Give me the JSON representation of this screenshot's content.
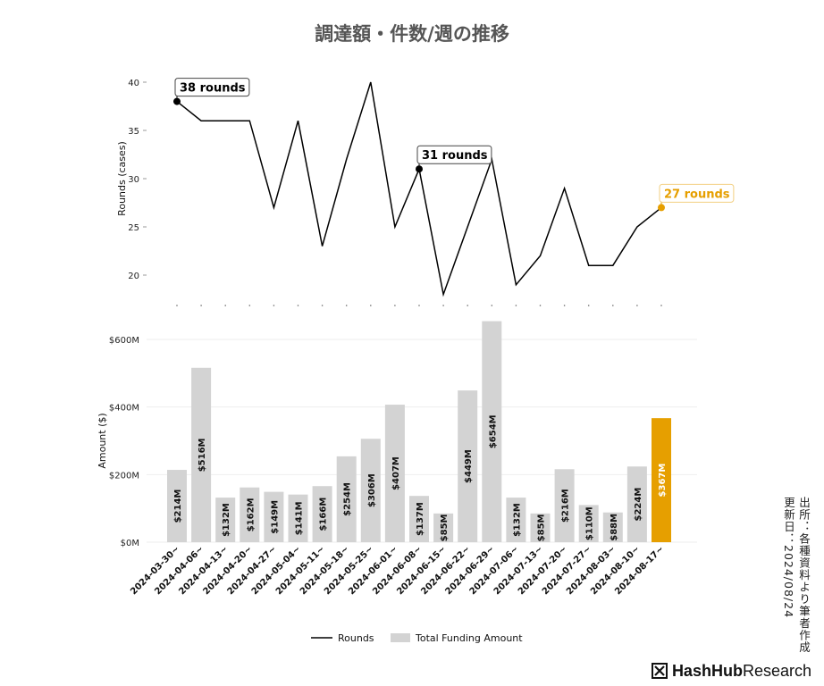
{
  "title": "調達額・件数/週の推移",
  "source_note": {
    "line1": "出所：各種資料より筆者作成",
    "line2": "更新日：2024/08/24"
  },
  "brand": {
    "part1": "HashHub",
    "part2": "Research"
  },
  "colors": {
    "line": "#000000",
    "bar": "#d3d3d3",
    "highlight": "#e69f00",
    "grid": "#eeeeee",
    "title": "#555555"
  },
  "legend": {
    "position": "bottom-center"
  },
  "chart_data": [
    {
      "type": "line",
      "ylabel": "Rounds (cases)",
      "ylim": [
        18,
        40
      ],
      "yticks": [
        20,
        25,
        30,
        35,
        40
      ],
      "grid": false,
      "x": [
        "2024-03-30~",
        "2024-04-06~",
        "2024-04-13~",
        "2024-04-20~",
        "2024-04-27~",
        "2024-05-04~",
        "2024-05-11~",
        "2024-05-18~",
        "2024-05-25~",
        "2024-06-01~",
        "2024-06-08~",
        "2024-06-15~",
        "2024-06-22~",
        "2024-06-29~",
        "2024-07-06~",
        "2024-07-13~",
        "2024-07-20~",
        "2024-07-27~",
        "2024-08-03~",
        "2024-08-10~",
        "2024-08-17~"
      ],
      "series": [
        {
          "name": "Rounds",
          "values": [
            38,
            36,
            36,
            36,
            27,
            36,
            23,
            32,
            40,
            25,
            31,
            18,
            25,
            32,
            19,
            22,
            29,
            21,
            21,
            25,
            27
          ]
        }
      ],
      "annotations": [
        {
          "index": 0,
          "text": "38 rounds"
        },
        {
          "index": 10,
          "text": "31 rounds"
        },
        {
          "index": 20,
          "text": "27 rounds",
          "highlight": true
        }
      ]
    },
    {
      "type": "bar",
      "ylabel": "Amount ($)",
      "ylim": [
        0,
        654
      ],
      "yticks": [
        0,
        200,
        400,
        600
      ],
      "ytick_labels": [
        "$0M",
        "$200M",
        "$400M",
        "$600M"
      ],
      "grid": true,
      "categories": [
        "2024-03-30~",
        "2024-04-06~",
        "2024-04-13~",
        "2024-04-20~",
        "2024-04-27~",
        "2024-05-04~",
        "2024-05-11~",
        "2024-05-18~",
        "2024-05-25~",
        "2024-06-01~",
        "2024-06-08~",
        "2024-06-15~",
        "2024-06-22~",
        "2024-06-29~",
        "2024-07-06~",
        "2024-07-13~",
        "2024-07-20~",
        "2024-07-27~",
        "2024-08-03~",
        "2024-08-10~",
        "2024-08-17~"
      ],
      "series": [
        {
          "name": "Total Funding Amount",
          "values": [
            214,
            516,
            132,
            162,
            149,
            141,
            166,
            254,
            306,
            407,
            137,
            85,
            449,
            654,
            132,
            85,
            216,
            110,
            88,
            224,
            367
          ]
        }
      ],
      "value_labels": [
        "$214M",
        "$516M",
        "$132M",
        "$162M",
        "$149M",
        "$141M",
        "$166M",
        "$254M",
        "$306M",
        "$407M",
        "$137M",
        "$85M",
        "$449M",
        "$654M",
        "$132M",
        "$85M",
        "$216M",
        "$110M",
        "$88M",
        "$224M",
        "$367M"
      ],
      "highlight_index": 20
    }
  ]
}
